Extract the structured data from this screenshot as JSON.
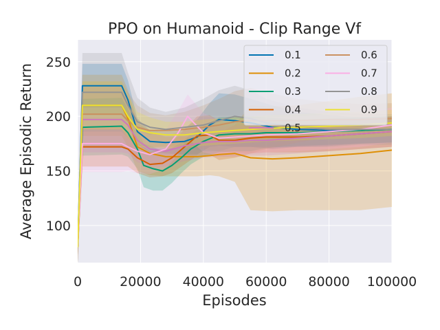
{
  "chart_data": {
    "type": "line",
    "title": "PPO on Humanoid - Clip Range Vf",
    "xlabel": "Episodes",
    "ylabel": "Average Episodic Return",
    "xlim": [
      0,
      100000
    ],
    "ylim": [
      66,
      270
    ],
    "xticks": [
      0,
      20000,
      40000,
      60000,
      80000,
      100000
    ],
    "yticks": [
      100,
      150,
      200,
      250
    ],
    "grid": true,
    "legend_position": "top-right",
    "legend_columns": 2,
    "series": [
      {
        "name": "0.1",
        "color": "#0173b2",
        "x": [
          0,
          1500,
          14000,
          16000,
          19000,
          23000,
          28000,
          34000,
          38000,
          42000,
          45000,
          50000,
          55000,
          62000,
          70000,
          80000,
          90000,
          100000
        ],
        "y": [
          80,
          228,
          228,
          215,
          186,
          177,
          176,
          177,
          181,
          192,
          197,
          196,
          194,
          190,
          188,
          187,
          187,
          188
        ],
        "band": [
          14,
          20,
          20,
          18,
          12,
          10,
          10,
          12,
          16,
          20,
          24,
          24,
          22,
          20,
          16,
          14,
          12,
          12
        ]
      },
      {
        "name": "0.2",
        "color": "#de8f05",
        "x": [
          0,
          1500,
          14000,
          16000,
          19000,
          23000,
          28000,
          34000,
          38000,
          42000,
          45000,
          50000,
          55000,
          62000,
          70000,
          80000,
          90000,
          100000
        ],
        "y": [
          80,
          210,
          210,
          198,
          172,
          166,
          163,
          163,
          163,
          164,
          165,
          166,
          162,
          161,
          162,
          164,
          166,
          169
        ],
        "band": [
          14,
          28,
          28,
          26,
          22,
          20,
          18,
          18,
          18,
          18,
          20,
          26,
          48,
          48,
          48,
          50,
          52,
          52
        ]
      },
      {
        "name": "0.3",
        "color": "#029e73",
        "x": [
          0,
          1500,
          14000,
          16000,
          19000,
          21000,
          24000,
          27000,
          30000,
          33000,
          36000,
          40000,
          45000,
          50000,
          55000,
          60000,
          70000,
          80000,
          90000,
          100000
        ],
        "y": [
          80,
          190,
          191,
          185,
          170,
          155,
          152,
          150,
          155,
          162,
          170,
          177,
          183,
          184,
          184,
          185,
          185,
          186,
          187,
          188
        ],
        "band": [
          14,
          26,
          26,
          22,
          18,
          20,
          20,
          18,
          16,
          14,
          14,
          14,
          16,
          16,
          16,
          14,
          12,
          12,
          12,
          12
        ]
      },
      {
        "name": "0.4",
        "color": "#d55e00",
        "x": [
          0,
          1500,
          14000,
          16000,
          19000,
          23000,
          27000,
          30000,
          34000,
          38000,
          42000,
          45000,
          50000,
          55000,
          60000,
          70000,
          80000,
          90000,
          100000
        ],
        "y": [
          80,
          172,
          172,
          170,
          162,
          156,
          157,
          162,
          172,
          182,
          183,
          178,
          178,
          180,
          181,
          181,
          182,
          184,
          186
        ],
        "band": [
          14,
          18,
          18,
          16,
          14,
          12,
          12,
          14,
          16,
          18,
          18,
          18,
          16,
          14,
          14,
          14,
          14,
          14,
          14
        ]
      },
      {
        "name": "0.5",
        "color": "#cc78bc",
        "x": [
          0,
          1500,
          14000,
          16000,
          19000,
          23000,
          28000,
          34000,
          40000,
          45000,
          50000,
          55000,
          60000,
          70000,
          80000,
          90000,
          100000
        ],
        "y": [
          80,
          197,
          197,
          192,
          178,
          170,
          168,
          173,
          176,
          177,
          177,
          178,
          178,
          180,
          182,
          184,
          186
        ],
        "band": [
          14,
          30,
          30,
          26,
          20,
          16,
          14,
          14,
          14,
          14,
          14,
          14,
          14,
          14,
          14,
          14,
          14
        ]
      },
      {
        "name": "0.6",
        "color": "#ca9161",
        "x": [
          0,
          1500,
          14000,
          16000,
          19000,
          23000,
          28000,
          34000,
          40000,
          45000,
          50000,
          55000,
          60000,
          70000,
          80000,
          90000,
          100000
        ],
        "y": [
          80,
          202,
          202,
          196,
          190,
          187,
          187,
          188,
          190,
          192,
          195,
          196,
          196,
          196,
          197,
          197,
          198
        ],
        "band": [
          14,
          30,
          30,
          26,
          20,
          16,
          14,
          16,
          20,
          24,
          28,
          30,
          26,
          20,
          16,
          14,
          14
        ]
      },
      {
        "name": "0.7",
        "color": "#fbafe4",
        "x": [
          0,
          1500,
          14000,
          16000,
          19000,
          23000,
          28000,
          32000,
          35000,
          40000,
          45000,
          50000,
          55000,
          60000,
          70000,
          80000,
          90000,
          100000
        ],
        "y": [
          80,
          175,
          175,
          172,
          168,
          165,
          170,
          185,
          200,
          185,
          180,
          181,
          182,
          183,
          184,
          186,
          188,
          192
        ],
        "band": [
          14,
          26,
          26,
          22,
          20,
          18,
          18,
          20,
          20,
          18,
          16,
          16,
          16,
          16,
          16,
          16,
          16,
          16
        ]
      },
      {
        "name": "0.8",
        "color": "#949494",
        "x": [
          0,
          1500,
          14000,
          16000,
          19000,
          23000,
          28000,
          34000,
          40000,
          45000,
          50000,
          55000,
          60000,
          70000,
          80000,
          90000,
          100000
        ],
        "y": [
          80,
          222,
          222,
          210,
          195,
          190,
          188,
          190,
          192,
          196,
          200,
          198,
          194,
          190,
          188,
          188,
          188
        ],
        "band": [
          14,
          36,
          36,
          30,
          22,
          18,
          16,
          18,
          24,
          28,
          28,
          26,
          22,
          18,
          16,
          14,
          14
        ]
      },
      {
        "name": "0.9",
        "color": "#ece133",
        "x": [
          0,
          1500,
          14000,
          16000,
          19000,
          23000,
          28000,
          34000,
          40000,
          45000,
          50000,
          55000,
          60000,
          70000,
          80000,
          90000,
          100000
        ],
        "y": [
          80,
          210,
          210,
          200,
          188,
          185,
          183,
          183,
          185,
          186,
          187,
          188,
          189,
          190,
          191,
          192,
          194
        ],
        "band": [
          14,
          22,
          22,
          20,
          16,
          14,
          12,
          12,
          12,
          12,
          12,
          12,
          12,
          12,
          12,
          12,
          12
        ]
      }
    ]
  }
}
